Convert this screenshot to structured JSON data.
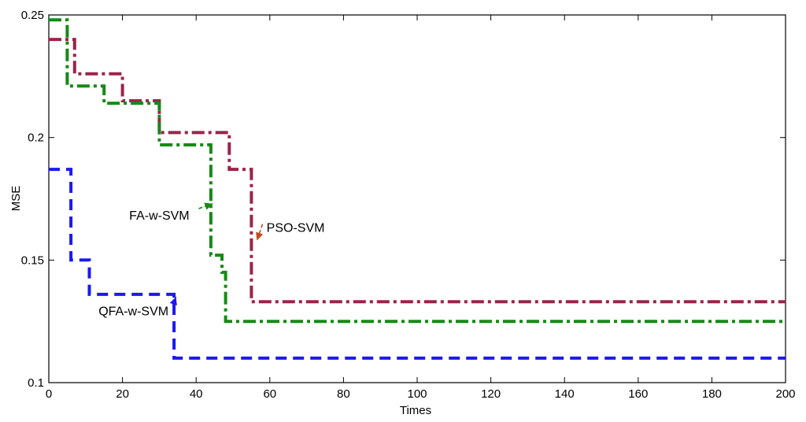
{
  "chart_data": {
    "type": "line",
    "title": "",
    "xlabel": "Times",
    "ylabel": "MSE",
    "xlim": [
      0,
      200
    ],
    "ylim": [
      0.1,
      0.25
    ],
    "xticks": [
      0,
      20,
      40,
      60,
      80,
      100,
      120,
      140,
      160,
      180,
      200
    ],
    "yticks": [
      0.1,
      0.15,
      0.2,
      0.25
    ],
    "ytick_labels": [
      "0.1",
      "0.15",
      "0.2",
      "0.25"
    ],
    "grid": false,
    "legend": "none",
    "series": [
      {
        "key": "pso",
        "color": "#9b2448",
        "dash": "dashdot",
        "x": [
          0,
          7,
          7,
          20,
          20,
          30,
          30,
          49,
          49,
          55,
          55,
          200
        ],
        "y": [
          0.24,
          0.24,
          0.226,
          0.226,
          0.215,
          0.215,
          0.202,
          0.202,
          0.187,
          0.187,
          0.133,
          0.133
        ]
      },
      {
        "key": "fa",
        "color": "#158a15",
        "dash": "dashdot",
        "x": [
          0,
          5,
          5,
          15,
          15,
          30,
          30,
          44,
          44,
          47,
          47,
          48,
          48,
          200
        ],
        "y": [
          0.248,
          0.248,
          0.221,
          0.221,
          0.214,
          0.214,
          0.197,
          0.197,
          0.152,
          0.152,
          0.145,
          0.145,
          0.125,
          0.125
        ]
      },
      {
        "key": "qfa",
        "color": "#1a1aee",
        "dash": "dashed",
        "x": [
          0,
          6,
          6,
          11,
          11,
          34,
          34,
          200
        ],
        "y": [
          0.187,
          0.187,
          0.15,
          0.15,
          0.136,
          0.136,
          0.11,
          0.11
        ]
      }
    ],
    "annotations": [
      {
        "text": "PSO-SVM",
        "label_x": 67,
        "label_y": 0.1615,
        "arrow_to_x": 56.5,
        "arrow_to_y": 0.158,
        "color": "#c04e1a"
      },
      {
        "text": "FA-w-SVM",
        "label_x": 30,
        "label_y": 0.1665,
        "arrow_to_x": 44.5,
        "arrow_to_y": 0.173,
        "color": "#158a15"
      },
      {
        "text": "QFA-w-SVM",
        "label_x": 23,
        "label_y": 0.1275,
        "arrow_to_x": 34.5,
        "arrow_to_y": 0.135,
        "color": "#1a1aee"
      }
    ]
  }
}
